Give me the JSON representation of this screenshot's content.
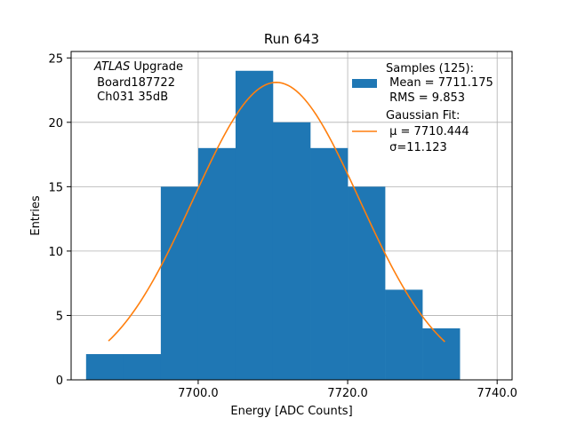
{
  "chart_data": {
    "type": "bar",
    "title": "Run 643",
    "xlabel": "Energy [ADC Counts]",
    "ylabel": "Entries",
    "xlim": [
      7683.0,
      7742.0
    ],
    "ylim": [
      0,
      25.5
    ],
    "xticks": [
      7700.0,
      7720.0,
      7740.0
    ],
    "xtick_labels": [
      "7700.0",
      "7720.0",
      "7740.0"
    ],
    "yticks": [
      0,
      5,
      10,
      15,
      20,
      25
    ],
    "ytick_labels": [
      "0",
      "5",
      "10",
      "15",
      "20",
      "25"
    ],
    "grid": true,
    "legend_position": "top-right",
    "colors": {
      "histogram": "#1f77b4",
      "fit": "#ff7f0e",
      "grid": "#b0b0b0"
    },
    "histogram": {
      "name": "Samples (125):",
      "bin_edges": [
        7685,
        7690,
        7695,
        7700,
        7705,
        7710,
        7715,
        7720,
        7725,
        7730,
        7735
      ],
      "counts": [
        2,
        2,
        15,
        18,
        24,
        20,
        18,
        15,
        7,
        4
      ]
    },
    "fit": {
      "name": "Gaussian Fit:",
      "mu": 7710.444,
      "sigma": 11.123,
      "amplitude": 23.1,
      "x_range": [
        7688.0,
        7733.0
      ]
    },
    "legend": {
      "samples_title": "Samples (125):",
      "samples_mean": " Mean = 7711.175",
      "samples_rms": " RMS = 9.853",
      "fit_title": "Gaussian Fit:",
      "fit_mu": " μ = 7710.444",
      "fit_sigma": " σ=11.123"
    },
    "annotation": {
      "experiment": "ATLAS",
      "experiment_suffix": " Upgrade",
      "board": " Board187722",
      "channel": " Ch031 35dB"
    }
  }
}
